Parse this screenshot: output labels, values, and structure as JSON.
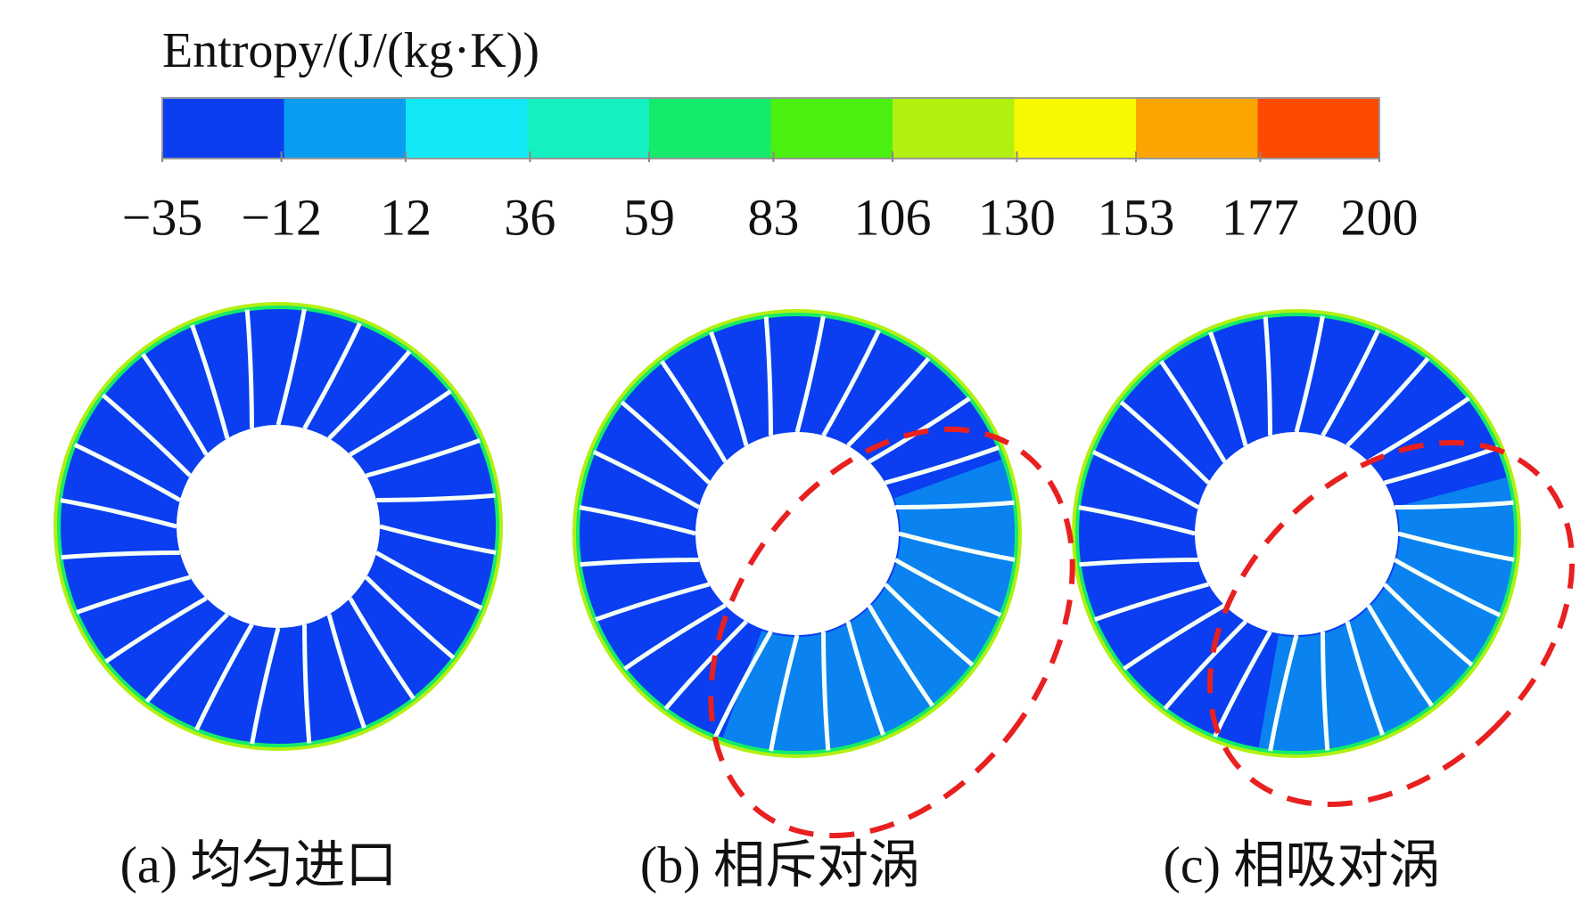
{
  "colorbar": {
    "title": "Entropy/(J/(kg·K))",
    "ticks": [
      {
        "value": -35,
        "label": "−35"
      },
      {
        "value": -12,
        "label": "−12"
      },
      12,
      36,
      59,
      83,
      106,
      130,
      153,
      177,
      200
    ],
    "colors": [
      "#0a3ef0",
      "#0a9cf0",
      "#12e8f5",
      "#14f0c0",
      "#14eb6a",
      "#4cf010",
      "#b2f010",
      "#f8f800",
      "#fca400",
      "#fc4a00"
    ]
  },
  "panels": [
    {
      "caption": "(a) 均匀进口"
    },
    {
      "caption": "(b) 相斥对涡"
    },
    {
      "caption": "(c) 相吸对涡"
    }
  ]
}
